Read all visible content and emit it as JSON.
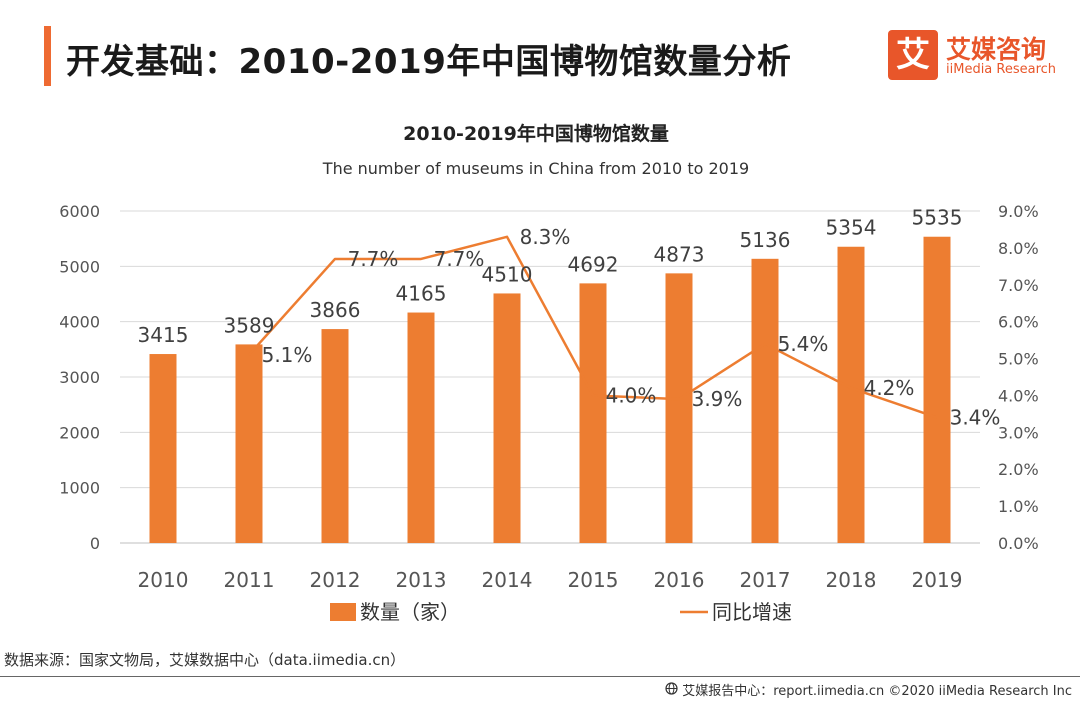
{
  "header": {
    "title": "开发基础：2010-2019年中国博物馆数量分析",
    "logo_mark": "艾",
    "logo_cn": "艾媒咨询",
    "logo_en": "iiMedia Research"
  },
  "colors": {
    "accent": "#ee6a32",
    "bar": "#ed7d31",
    "line": "#ed7d31",
    "axis_text": "#555555",
    "grid": "#d9d9d9"
  },
  "chart_data": {
    "type": "bar",
    "title": "2010-2019年中国博物馆数量",
    "subtitle": "The number of museums in China  from 2010 to 2019",
    "categories": [
      "2010",
      "2011",
      "2012",
      "2013",
      "2014",
      "2015",
      "2016",
      "2017",
      "2018",
      "2019"
    ],
    "series": [
      {
        "name": "数量（家）",
        "type": "bar",
        "axis": "left",
        "values": [
          3415,
          3589,
          3866,
          4165,
          4510,
          4692,
          4873,
          5136,
          5354,
          5535
        ],
        "labels": [
          "3415",
          "3589",
          "3866",
          "4165",
          "4510",
          "4692",
          "4873",
          "5136",
          "5354",
          "5535"
        ]
      },
      {
        "name": "同比增速",
        "type": "line",
        "axis": "right",
        "values": [
          null,
          5.1,
          7.7,
          7.7,
          8.3,
          4.0,
          3.9,
          5.4,
          4.2,
          3.4
        ],
        "labels": [
          null,
          "5.1%",
          "7.7%",
          "7.7%",
          "8.3%",
          "4.0%",
          "3.9%",
          "5.4%",
          "4.2%",
          "3.4%"
        ]
      }
    ],
    "ylim_left": [
      0,
      6000
    ],
    "yticks_left": [
      "0",
      "1000",
      "2000",
      "3000",
      "4000",
      "5000",
      "6000"
    ],
    "ylim_right": [
      0,
      9
    ],
    "yticks_right": [
      "0.0%",
      "1.0%",
      "2.0%",
      "3.0%",
      "4.0%",
      "5.0%",
      "6.0%",
      "7.0%",
      "8.0%",
      "9.0%"
    ],
    "grid": true,
    "legend_position": "bottom"
  },
  "source": "数据来源：国家文物局，艾媒数据中心（data.iimedia.cn）",
  "footer": "艾媒报告中心：report.iimedia.cn  ©2020  iiMedia Research  Inc"
}
